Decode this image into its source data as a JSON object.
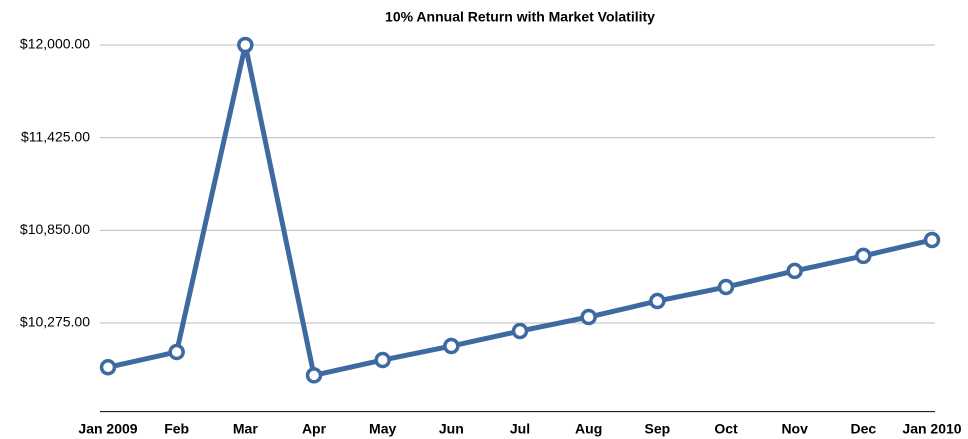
{
  "chart_data": {
    "type": "line",
    "title": "10% Annual Return with Market Volatility",
    "categories": [
      "Jan 2009",
      "Feb",
      "Mar",
      "Apr",
      "May",
      "Jun",
      "Jul",
      "Aug",
      "Sep",
      "Oct",
      "Nov",
      "Dec",
      "Jan 2010"
    ],
    "series": [
      {
        "name": "Value",
        "color": "#3e6aa1",
        "values": [
          10000,
          10095,
          12000,
          9950,
          10045,
          10132,
          10225,
          10312,
          10411,
          10498,
          10598,
          10691,
          10790
        ]
      }
    ],
    "ylim": [
      9725,
      12000
    ],
    "yticks": [
      {
        "value": 10275,
        "label": "$10,275.00"
      },
      {
        "value": 10850,
        "label": "$10,850.00"
      },
      {
        "value": 11425,
        "label": "$11,425.00"
      },
      {
        "value": 12000,
        "label": "$12,000.00"
      }
    ],
    "grid": true
  }
}
